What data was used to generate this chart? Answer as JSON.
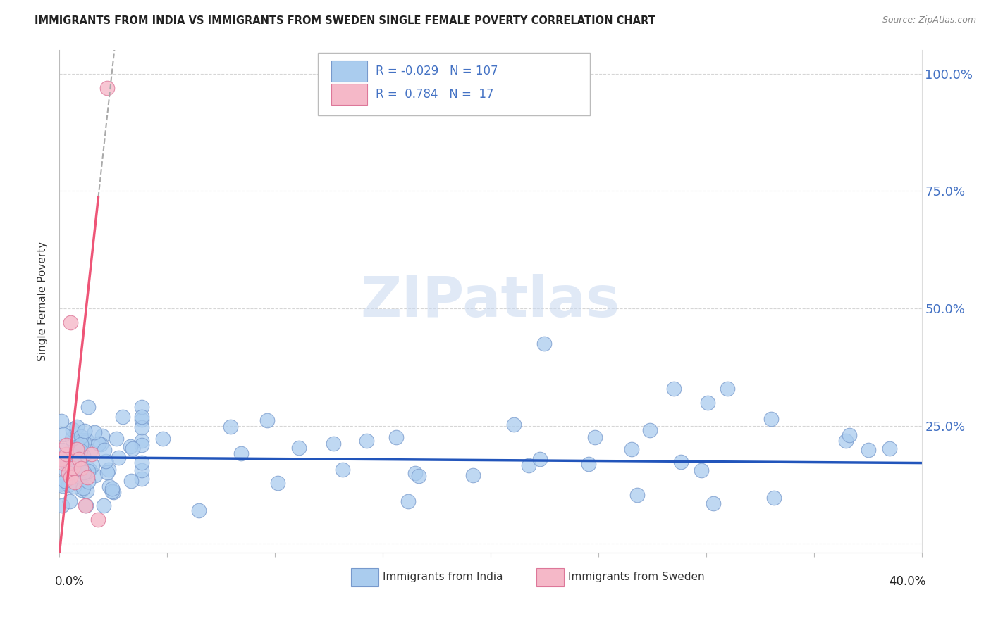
{
  "title": "IMMIGRANTS FROM INDIA VS IMMIGRANTS FROM SWEDEN SINGLE FEMALE POVERTY CORRELATION CHART",
  "source": "Source: ZipAtlas.com",
  "ylabel": "Single Female Poverty",
  "legend_india": "Immigrants from India",
  "legend_sweden": "Immigrants from Sweden",
  "india_R": -0.029,
  "india_N": 107,
  "sweden_R": 0.784,
  "sweden_N": 17,
  "india_color": "#aaccee",
  "india_edge": "#7799cc",
  "sweden_color": "#f5b8c8",
  "sweden_edge": "#dd7799",
  "india_line_color": "#2255bb",
  "sweden_line_color": "#ee5577",
  "xlim": [
    0.0,
    0.4
  ],
  "ylim": [
    -0.02,
    1.05
  ],
  "india_line_y_intercept": 0.183,
  "india_line_slope": -0.03,
  "sweden_line_intercept": -0.02,
  "sweden_line_slope": 42.0
}
